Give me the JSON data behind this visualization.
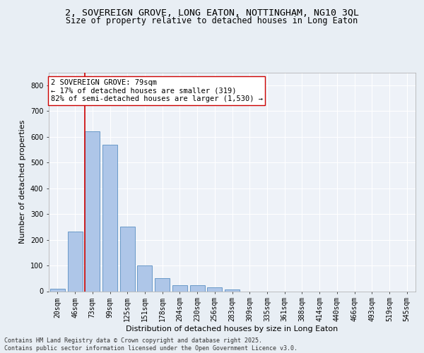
{
  "title_line1": "2, SOVEREIGN GROVE, LONG EATON, NOTTINGHAM, NG10 3QL",
  "title_line2": "Size of property relative to detached houses in Long Eaton",
  "xlabel": "Distribution of detached houses by size in Long Eaton",
  "ylabel": "Number of detached properties",
  "categories": [
    "20sqm",
    "46sqm",
    "73sqm",
    "99sqm",
    "125sqm",
    "151sqm",
    "178sqm",
    "204sqm",
    "230sqm",
    "256sqm",
    "283sqm",
    "309sqm",
    "335sqm",
    "361sqm",
    "388sqm",
    "414sqm",
    "440sqm",
    "466sqm",
    "493sqm",
    "519sqm",
    "545sqm"
  ],
  "values": [
    10,
    232,
    620,
    570,
    250,
    100,
    52,
    22,
    22,
    15,
    7,
    0,
    0,
    0,
    0,
    0,
    0,
    0,
    0,
    0,
    0
  ],
  "bar_color": "#aec6e8",
  "bar_edge_color": "#5a8fc2",
  "vline_color": "#cc0000",
  "annotation_text": "2 SOVEREIGN GROVE: 79sqm\n← 17% of detached houses are smaller (319)\n82% of semi-detached houses are larger (1,530) →",
  "annotation_box_color": "#ffffff",
  "annotation_box_edge": "#cc0000",
  "ylim": [
    0,
    850
  ],
  "yticks": [
    0,
    100,
    200,
    300,
    400,
    500,
    600,
    700,
    800
  ],
  "bg_color": "#e8eef4",
  "plot_bg_color": "#eef2f8",
  "grid_color": "#ffffff",
  "footer": "Contains HM Land Registry data © Crown copyright and database right 2025.\nContains public sector information licensed under the Open Government Licence v3.0.",
  "title_fontsize": 9.5,
  "subtitle_fontsize": 8.5,
  "tick_fontsize": 7,
  "ylabel_fontsize": 8,
  "xlabel_fontsize": 8,
  "annotation_fontsize": 7.5,
  "footer_fontsize": 6
}
